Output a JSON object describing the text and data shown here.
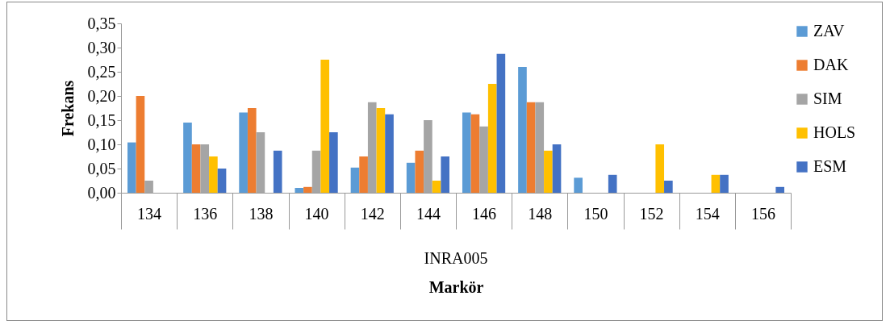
{
  "chart_data": {
    "type": "bar",
    "xlabel": "Markör",
    "ylabel": "Frekans",
    "annotations": [
      "INRA005"
    ],
    "categories": [
      "134",
      "136",
      "138",
      "140",
      "142",
      "144",
      "146",
      "148",
      "150",
      "152",
      "154",
      "156"
    ],
    "series": [
      {
        "name": "ZAV",
        "color": "#5b9bd5",
        "values": [
          0.104,
          0.145,
          0.166,
          0.01,
          0.052,
          0.062,
          0.166,
          0.26,
          0.031,
          0,
          0,
          0
        ]
      },
      {
        "name": "DAK",
        "color": "#ed7d31",
        "values": [
          0.2,
          0.1,
          0.175,
          0.012,
          0.075,
          0.087,
          0.162,
          0.187,
          0,
          0,
          0,
          0
        ]
      },
      {
        "name": "SIM",
        "color": "#a5a5a5",
        "values": [
          0.025,
          0.1,
          0.125,
          0.087,
          0.187,
          0.15,
          0.137,
          0.187,
          0,
          0,
          0,
          0
        ]
      },
      {
        "name": "HOLS",
        "color": "#ffc000",
        "values": [
          0,
          0.075,
          0,
          0.275,
          0.175,
          0.025,
          0.225,
          0.087,
          0,
          0.1,
          0.037,
          0
        ]
      },
      {
        "name": "ESM",
        "color": "#4472c4",
        "values": [
          0,
          0.05,
          0.087,
          0.125,
          0.162,
          0.075,
          0.287,
          0.1,
          0.037,
          0.025,
          0.037,
          0.012
        ]
      }
    ],
    "ylim": [
      0,
      0.35
    ],
    "yticks": [
      {
        "value": 0,
        "label": "0,00"
      },
      {
        "value": 0.05,
        "label": "0,05"
      },
      {
        "value": 0.1,
        "label": "0,10"
      },
      {
        "value": 0.15,
        "label": "0,15"
      },
      {
        "value": 0.2,
        "label": "0,20"
      },
      {
        "value": 0.25,
        "label": "0,25"
      },
      {
        "value": 0.3,
        "label": "0,30"
      },
      {
        "value": 0.35,
        "label": "0,35"
      }
    ],
    "grid": false,
    "legend": "right"
  }
}
